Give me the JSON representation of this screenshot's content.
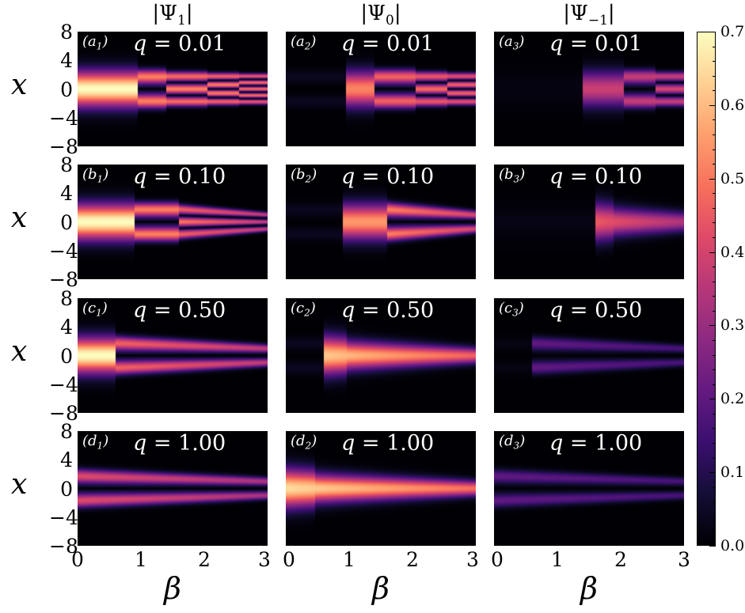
{
  "chart_data": {
    "type": "heatmap",
    "column_titles": [
      "|Ψ1|",
      "|Ψ0|",
      "|Ψ−1|"
    ],
    "column_titles_parts": [
      {
        "base": "|Ψ",
        "sub": "1",
        "end": "|"
      },
      {
        "base": "|Ψ",
        "sub": "0",
        "end": "|"
      },
      {
        "base": "|Ψ",
        "sub": "−1",
        "end": "|"
      }
    ],
    "xlabel": "β",
    "ylabel": "x",
    "xlim": [
      0,
      3
    ],
    "ylim": [
      -8,
      8
    ],
    "x_ticks": [
      "0",
      "1",
      "2",
      "3"
    ],
    "y_ticks": [
      "8",
      "4",
      "0",
      "−4",
      "−8"
    ],
    "colormap": "magma",
    "colorbar": {
      "range": [
        0.0,
        0.7
      ],
      "ticks": [
        "0.7",
        "0.6",
        "0.5",
        "0.4",
        "0.3",
        "0.2",
        "0.1",
        "0.0"
      ]
    },
    "rows": [
      {
        "q": "0.01",
        "labels": [
          "a",
          "a",
          "a"
        ]
      },
      {
        "q": "0.10",
        "labels": [
          "b",
          "b",
          "b"
        ]
      },
      {
        "q": "0.50",
        "labels": [
          "c",
          "c",
          "c"
        ]
      },
      {
        "q": "1.00",
        "labels": [
          "d",
          "d",
          "d"
        ]
      }
    ],
    "q_prefix": "q = ",
    "panels": [
      [
        {
          "segments": [
            {
              "b0": 0,
              "b1": 0.95,
              "n": 1,
              "amp": 0.7
            },
            {
              "b0": 0.95,
              "b1": 1.4,
              "n": 2,
              "amp": 0.55
            },
            {
              "b0": 1.4,
              "b1": 2.05,
              "n": 3,
              "amp": 0.52
            },
            {
              "b0": 2.05,
              "b1": 2.55,
              "n": 4,
              "amp": 0.5
            },
            {
              "b0": 2.55,
              "b1": 3,
              "n": 5,
              "amp": 0.48
            }
          ]
        },
        {
          "segments": [
            {
              "b0": 0,
              "b1": 0.95,
              "n": 2,
              "amp": 0.04
            },
            {
              "b0": 0.95,
              "b1": 1.4,
              "n": 1,
              "amp": 0.52
            },
            {
              "b0": 1.4,
              "b1": 2.05,
              "n": 2,
              "amp": 0.5
            },
            {
              "b0": 2.05,
              "b1": 2.55,
              "n": 3,
              "amp": 0.48
            },
            {
              "b0": 2.55,
              "b1": 3,
              "n": 4,
              "amp": 0.46
            }
          ]
        },
        {
          "segments": [
            {
              "b0": 0,
              "b1": 1.4,
              "n": 1,
              "amp": 0.02
            },
            {
              "b0": 1.4,
              "b1": 2.05,
              "n": 1,
              "amp": 0.38
            },
            {
              "b0": 2.05,
              "b1": 2.55,
              "n": 2,
              "amp": 0.4
            },
            {
              "b0": 2.55,
              "b1": 3,
              "n": 3,
              "amp": 0.4
            }
          ]
        }
      ],
      [
        {
          "segments": [
            {
              "b0": 0,
              "b1": 0.9,
              "n": 1,
              "amp": 0.7
            },
            {
              "b0": 0.9,
              "b1": 1.6,
              "n": 2,
              "amp": 0.55
            },
            {
              "b0": 1.6,
              "b1": 3,
              "n": 3,
              "amp": 0.5,
              "taper": 0.45
            }
          ]
        },
        {
          "segments": [
            {
              "b0": 0,
              "b1": 0.9,
              "n": 2,
              "amp": 0.04
            },
            {
              "b0": 0.9,
              "b1": 1.6,
              "n": 1,
              "amp": 0.55
            },
            {
              "b0": 1.6,
              "b1": 3,
              "n": 2,
              "amp": 0.55,
              "taper": 0.45
            }
          ]
        },
        {
          "segments": [
            {
              "b0": 0,
              "b1": 1.6,
              "n": 1,
              "amp": 0.02
            },
            {
              "b0": 1.6,
              "b1": 3,
              "n": 1,
              "amp": 0.45,
              "taper": 0.4
            }
          ]
        }
      ],
      [
        {
          "segments": [
            {
              "b0": 0,
              "b1": 0.6,
              "n": 1,
              "amp": 0.7
            },
            {
              "b0": 0.6,
              "b1": 3,
              "n": 2,
              "amp": 0.5,
              "taper": 0.55
            }
          ]
        },
        {
          "segments": [
            {
              "b0": 0,
              "b1": 0.6,
              "n": 2,
              "amp": 0.04
            },
            {
              "b0": 0.6,
              "b1": 3,
              "n": 1,
              "amp": 0.62,
              "taper": 0.55
            }
          ]
        },
        {
          "segments": [
            {
              "b0": 0,
              "b1": 0.6,
              "n": 2,
              "amp": 0.02
            },
            {
              "b0": 0.6,
              "b1": 3,
              "n": 2,
              "amp": 0.22,
              "taper": 0.5
            }
          ]
        }
      ],
      [
        {
          "segments": [
            {
              "b0": 0,
              "b1": 3,
              "n": 2,
              "amp": 0.45,
              "taper": 0.55
            }
          ]
        },
        {
          "segments": [
            {
              "b0": 0,
              "b1": 3,
              "n": 1,
              "amp": 0.65,
              "taper": 0.55
            }
          ]
        },
        {
          "segments": [
            {
              "b0": 0,
              "b1": 3,
              "n": 2,
              "amp": 0.22,
              "taper": 0.55
            }
          ]
        }
      ]
    ]
  }
}
